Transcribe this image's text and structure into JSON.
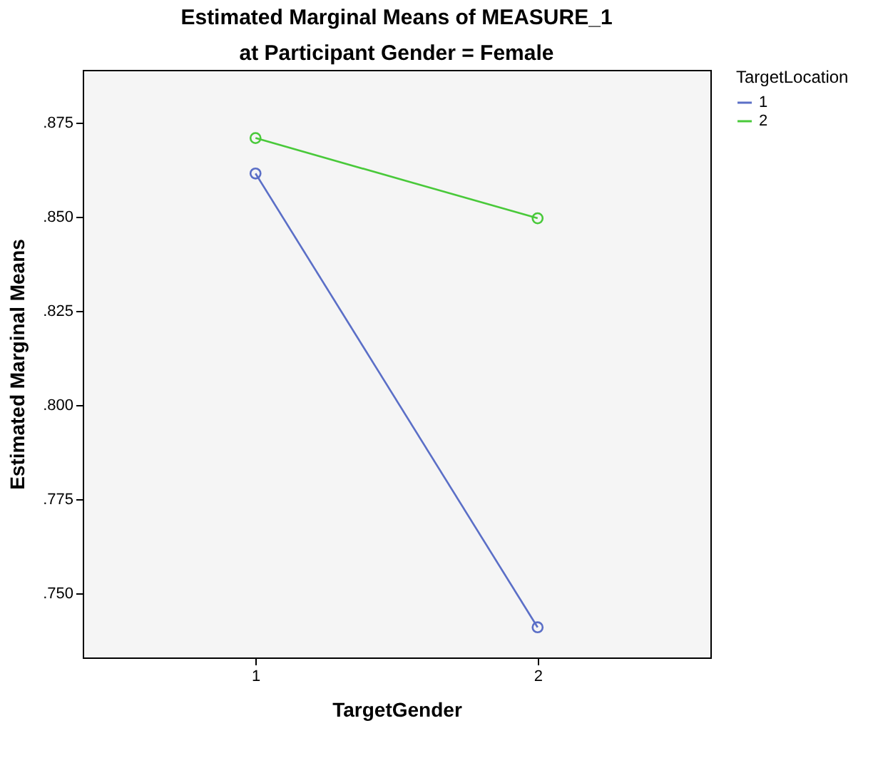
{
  "chart_data": {
    "type": "line",
    "title": "Estimated Marginal Means of MEASURE_1",
    "subtitle": "at Participant Gender = Female",
    "xlabel": "TargetGender",
    "ylabel": "Estimated Marginal Means",
    "legend_title": "TargetLocation",
    "categories": [
      "1",
      "2"
    ],
    "series": [
      {
        "name": "1",
        "color": "#5b6fc7",
        "values": [
          0.8615,
          0.741
        ]
      },
      {
        "name": "2",
        "color": "#49c93a",
        "values": [
          0.8709,
          0.8496
        ]
      }
    ],
    "ylim": [
      0.733,
      0.889
    ],
    "yticks": [
      {
        "value": 0.75,
        "label": ".750"
      },
      {
        "value": 0.775,
        "label": ".775"
      },
      {
        "value": 0.8,
        "label": ".800"
      },
      {
        "value": 0.825,
        "label": ".825"
      },
      {
        "value": 0.85,
        "label": ".850"
      },
      {
        "value": 0.875,
        "label": ".875"
      }
    ],
    "grid": false,
    "legend": "right",
    "marker": "circle",
    "line_style": "solid"
  }
}
